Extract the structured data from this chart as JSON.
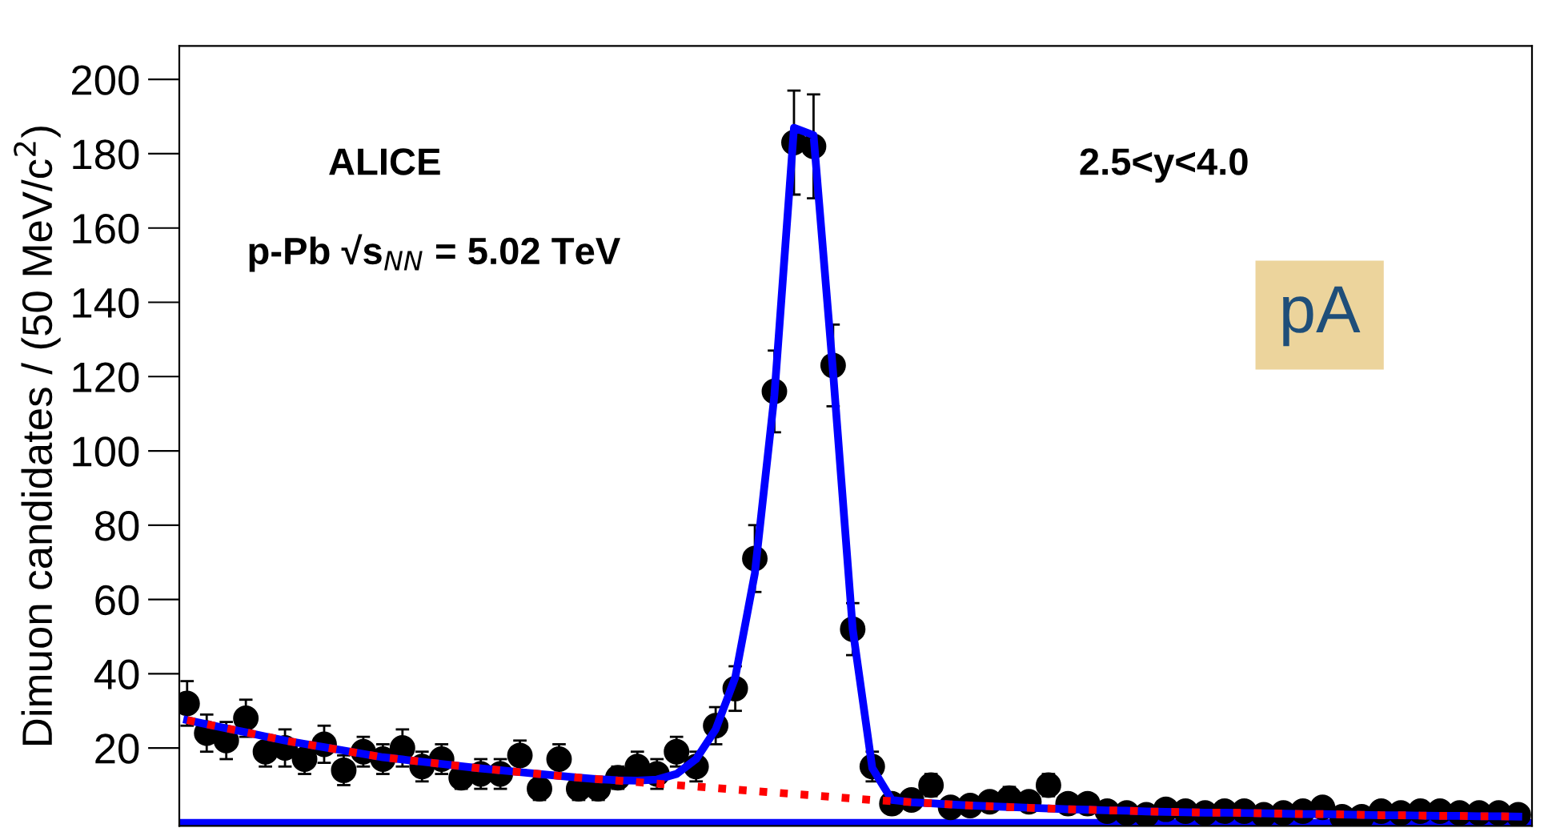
{
  "chart_data": {
    "type": "scatter",
    "ylabel": "Dimuon candidates / (50 MeV/c$^{2}$)",
    "categories": [
      null,
      null,
      null,
      null,
      null,
      null,
      null,
      null,
      null,
      null,
      null,
      null,
      null,
      null,
      null,
      null,
      null,
      null,
      null,
      null,
      null,
      null,
      null,
      null,
      null,
      null,
      null,
      null,
      null,
      null,
      null,
      null,
      null,
      null,
      null,
      null,
      null,
      null,
      null,
      null,
      null,
      null,
      null,
      null,
      null,
      null,
      null,
      null,
      null,
      null,
      null,
      null,
      null,
      null,
      null,
      null,
      null,
      null,
      null,
      null,
      null,
      null,
      null,
      null,
      null,
      null,
      null,
      null,
      null
    ],
    "series": [
      {
        "color": "#000000",
        "marker": "circle",
        "values": [
          32,
          24,
          22,
          28,
          19,
          20,
          17,
          21,
          14,
          19,
          17,
          20,
          15,
          17,
          12,
          13,
          13,
          18,
          9,
          17,
          9,
          9,
          12,
          15,
          13,
          19,
          15,
          26,
          36,
          71,
          116,
          183,
          182,
          123,
          52,
          15,
          5,
          6,
          10,
          4,
          4.5,
          5.5,
          6.5,
          5.5,
          10,
          5,
          5,
          3,
          2.5,
          2,
          3.5,
          3,
          2.5,
          3,
          3,
          2,
          2.5,
          3,
          4,
          1.5,
          1.5,
          3,
          2.5,
          3,
          3,
          2.5,
          2.5,
          2.5,
          2
        ],
        "errors": [
          6,
          5,
          5,
          5,
          4,
          5,
          4,
          5,
          4,
          4,
          4,
          5,
          4,
          4,
          3,
          4,
          4,
          4,
          3,
          4,
          3,
          3,
          3,
          4,
          4,
          4,
          4,
          5,
          6,
          9,
          11,
          14,
          14,
          11,
          7,
          4,
          2,
          2,
          3,
          2,
          2,
          2,
          3,
          2,
          3,
          2,
          2,
          2,
          2,
          1,
          2,
          2,
          2,
          2,
          2,
          1,
          2,
          2,
          2,
          1,
          1,
          2,
          2,
          2,
          2,
          2,
          2,
          2,
          1
        ]
      },
      {
        "type": "line",
        "color": "#0000ff",
        "line_style": "solid",
        "values": [
          27.5,
          26.4,
          25.3,
          24.2,
          23.1,
          22,
          21.1,
          20.2,
          19.3,
          18.4,
          17.5,
          16.9,
          16.3,
          15.7,
          15.1,
          14.5,
          14,
          13.5,
          13,
          12.5,
          12,
          11.6,
          11.3,
          11.2,
          11.5,
          13,
          17,
          25,
          39,
          67,
          115,
          187,
          185,
          121,
          52,
          14.6,
          6,
          5.4,
          5.1,
          4.8,
          4.5,
          4.3,
          4.1,
          3.9,
          3.7,
          3.5,
          3.4,
          3.2,
          3.1,
          2.9,
          2.8,
          2.7,
          2.6,
          2.6,
          2.5,
          2.4,
          2.3,
          2.2,
          2.2,
          2.1,
          2,
          1.9,
          1.9,
          1.8,
          1.7,
          1.7,
          1.6,
          1.6,
          1.5
        ]
      },
      {
        "type": "line",
        "color": "#ff0000",
        "line_style": "dotted",
        "values": [
          27.5,
          26.4,
          25.3,
          24.2,
          23.1,
          22,
          21.1,
          20.2,
          19.3,
          18.4,
          17.5,
          16.9,
          16.3,
          15.7,
          15.1,
          14.5,
          14,
          13.5,
          13,
          12.5,
          12,
          11.6,
          11.2,
          10.8,
          10.4,
          10,
          9.6,
          9.2,
          8.8,
          8.4,
          8,
          7.6,
          7.2,
          6.8,
          6.4,
          6,
          5.7,
          5.4,
          5.1,
          4.8,
          4.5,
          4.3,
          4.1,
          3.9,
          3.7,
          3.5,
          3.4,
          3.2,
          3.1,
          2.9,
          2.8,
          2.7,
          2.6,
          2.6,
          2.5,
          2.4,
          2.3,
          2.2,
          2.2,
          2.1,
          2,
          1.9,
          1.9,
          1.8,
          1.7,
          1.7,
          1.6,
          1.6,
          1.5
        ]
      }
    ],
    "ylim": [
      -1,
      209
    ],
    "yticks": [
      20,
      40,
      60,
      80,
      100,
      120,
      140,
      160,
      180,
      200
    ],
    "ref_lines": [
      {
        "axis": "y",
        "value": 0,
        "color": "#0000ff",
        "line_style": "solid"
      }
    ],
    "annotations": [
      "ALICE",
      "p-Pb √s$_{NN}$ = 5.02 TeV",
      "2.5<y<4.0",
      "pA"
    ],
    "grid": false,
    "legend": false
  }
}
